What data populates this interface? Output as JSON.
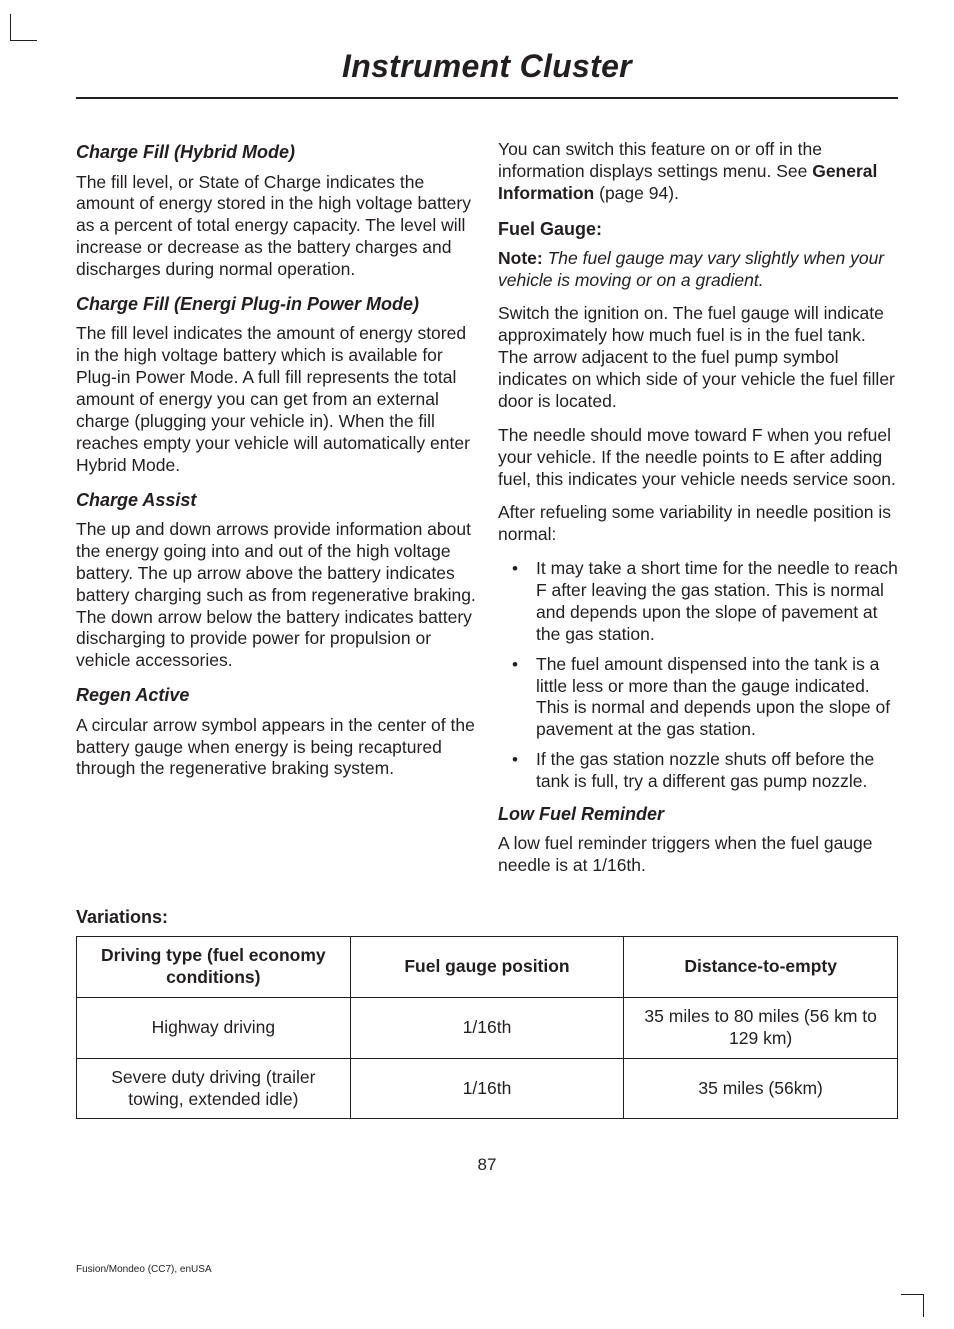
{
  "header": {
    "title": "Instrument Cluster"
  },
  "left": {
    "s1": {
      "h": "Charge Fill (Hybrid Mode)",
      "p": "The fill level, or State of Charge indicates the amount of energy stored in the high voltage battery as a percent of total energy capacity. The level will increase or decrease as the battery charges and discharges during normal operation."
    },
    "s2": {
      "h": "Charge Fill (Energi Plug-in Power Mode)",
      "p": "The fill level indicates the amount of energy stored in the high voltage battery which is available for Plug-in Power Mode. A full fill represents the total amount of energy you can get from an external charge (plugging your vehicle in). When the fill reaches empty your vehicle will automatically enter Hybrid Mode."
    },
    "s3": {
      "h": "Charge Assist",
      "p": "The up and down arrows provide information about the energy going into and out of the high voltage battery. The up arrow above the battery indicates battery charging such as from regenerative braking. The down arrow below the battery indicates battery discharging to provide power for propulsion or vehicle accessories."
    },
    "s4": {
      "h": "Regen Active",
      "p": "A circular arrow symbol appears in the center of the battery gauge when energy is being recaptured through the regenerative braking system."
    }
  },
  "right": {
    "intro": {
      "p_pre": "You can switch this feature on or off in the information displays settings menu.  See ",
      "xref": "General Information",
      "p_post": " (page 94)."
    },
    "fuel": {
      "h": "Fuel Gauge:",
      "note_label": "Note:",
      "note_body": " The fuel gauge may vary slightly when your vehicle is moving or on a gradient.",
      "p1": "Switch the ignition on. The fuel gauge will indicate approximately how much fuel is in the fuel tank. The arrow adjacent to the fuel pump symbol indicates on which side of your vehicle the fuel filler door is located.",
      "p2": "The needle should move toward F when you refuel your vehicle. If the needle points to E after adding fuel, this indicates your vehicle needs service soon.",
      "p3": "After refueling some variability in needle position is normal:",
      "bullets": [
        "It may take a short time for the needle to reach F after leaving the gas station. This is normal and depends upon the slope of pavement at the gas station.",
        "The fuel amount dispensed into the tank is a little less or more than the gauge indicated. This is normal and depends upon the slope of pavement at the gas station.",
        "If the gas station nozzle shuts off before the tank is full, try a different gas pump nozzle."
      ]
    },
    "low": {
      "h": "Low Fuel Reminder",
      "p": "A low fuel reminder triggers when the fuel gauge needle is at 1/16th."
    }
  },
  "variations": {
    "h": "Variations:",
    "cols": [
      "Driving type (fuel economy conditions)",
      "Fuel gauge position",
      "Distance-to-empty"
    ],
    "rows": [
      [
        "Highway driving",
        "1/16th",
        "35 miles to 80 miles (56 km to 129 km)"
      ],
      [
        "Severe duty driving (trailer towing, extended idle)",
        "1/16th",
        "35 miles (56km)"
      ]
    ]
  },
  "pagenum": "87",
  "footer": "Fusion/Mondeo (CC7), enUSA"
}
